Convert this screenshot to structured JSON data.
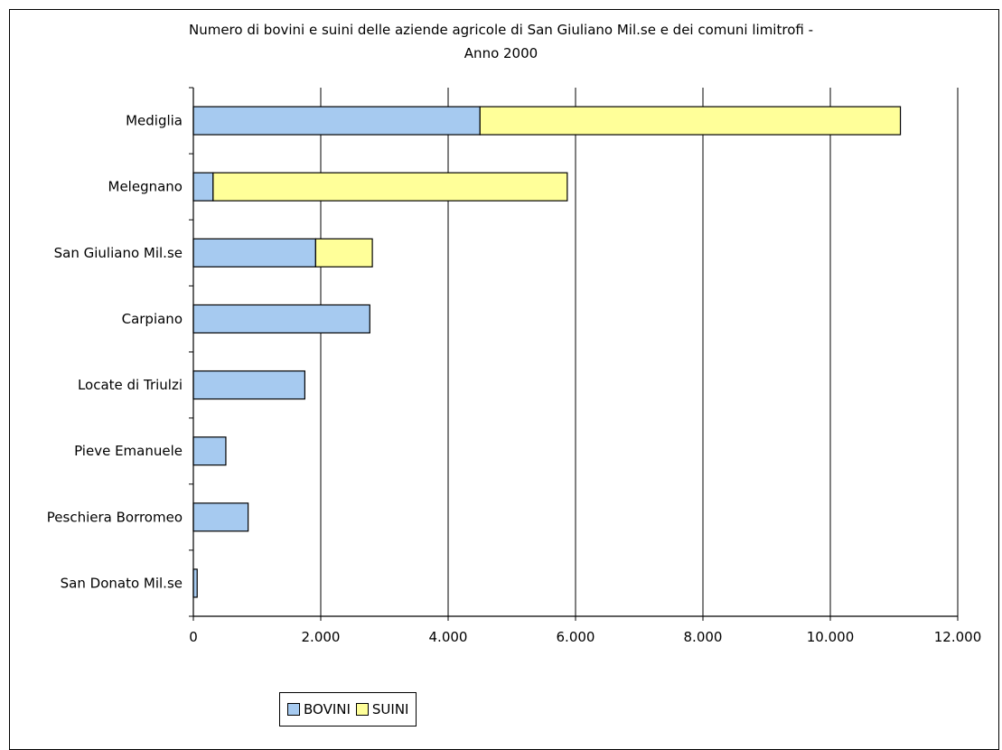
{
  "chart_data": {
    "type": "bar",
    "orientation": "horizontal",
    "stacked": true,
    "title_line1": "Numero di bovini e suini delle aziende agricole di San Giuliano Mil.se e dei comuni limitrofi -",
    "title_line2": "Anno 2000",
    "categories": [
      "Mediglia",
      "Melegnano",
      "San Giuliano Mil.se",
      "Carpiano",
      "Locate di Triulzi",
      "Pieve Emanuele",
      "Peschiera Borromeo",
      "San Donato Mil.se"
    ],
    "series": [
      {
        "name": "BOVINI",
        "color": "#a6caf0",
        "values": [
          4500,
          310,
          1920,
          2770,
          1750,
          510,
          860,
          60
        ]
      },
      {
        "name": "SUINI",
        "color": "#ffff99",
        "values": [
          6600,
          5560,
          890,
          0,
          0,
          0,
          0,
          0
        ]
      }
    ],
    "xlim": [
      0,
      12000
    ],
    "xticks": [
      0,
      2000,
      4000,
      6000,
      8000,
      10000,
      12000
    ],
    "xtick_labels": [
      "0",
      "2.000",
      "4.000",
      "6.000",
      "8.000",
      "10.000",
      "12.000"
    ],
    "grid": true,
    "legend_position": "bottom"
  }
}
